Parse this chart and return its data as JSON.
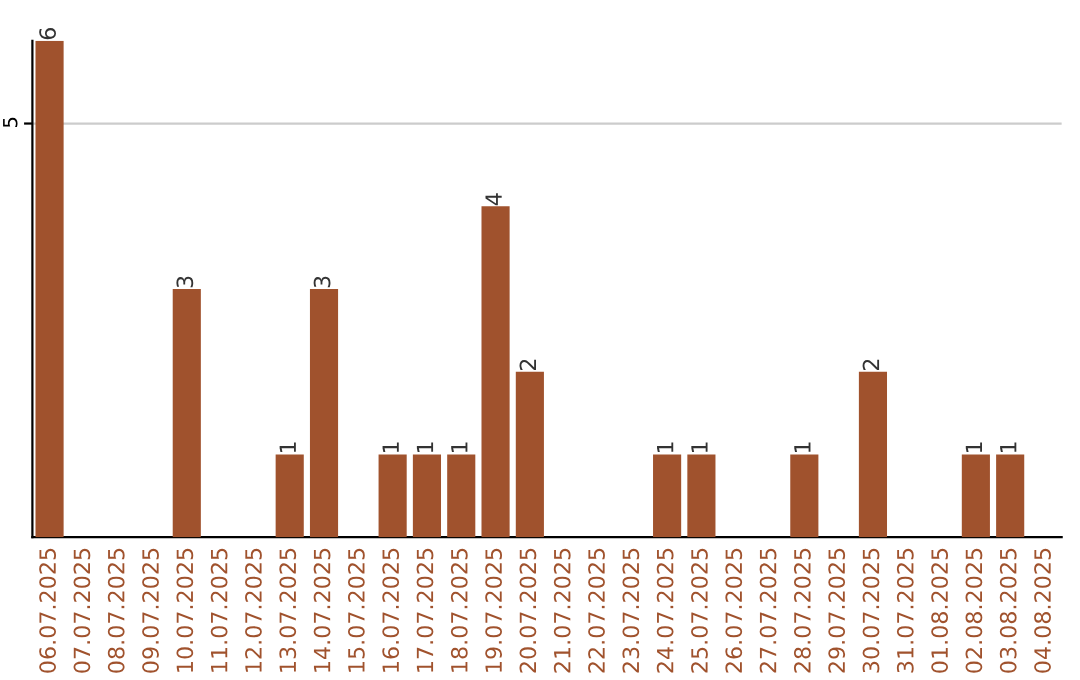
{
  "chart_data": {
    "type": "bar",
    "categories": [
      "06.07.2025",
      "07.07.2025",
      "08.07.2025",
      "09.07.2025",
      "10.07.2025",
      "11.07.2025",
      "12.07.2025",
      "13.07.2025",
      "14.07.2025",
      "15.07.2025",
      "16.07.2025",
      "17.07.2025",
      "18.07.2025",
      "19.07.2025",
      "20.07.2025",
      "21.07.2025",
      "22.07.2025",
      "23.07.2025",
      "24.07.2025",
      "25.07.2025",
      "26.07.2025",
      "27.07.2025",
      "28.07.2025",
      "29.07.2025",
      "30.07.2025",
      "31.07.2025",
      "01.08.2025",
      "02.08.2025",
      "03.08.2025",
      "04.08.2025"
    ],
    "values": [
      6,
      0,
      0,
      0,
      3,
      0,
      0,
      1,
      3,
      0,
      1,
      1,
      1,
      4,
      2,
      0,
      0,
      0,
      1,
      1,
      0,
      0,
      1,
      0,
      2,
      0,
      0,
      1,
      1,
      0
    ],
    "value_labels": [
      "6",
      null,
      null,
      null,
      "3",
      null,
      null,
      "1",
      "3",
      null,
      "1",
      "1",
      "1",
      "4",
      "2",
      null,
      null,
      null,
      "1",
      "1",
      null,
      null,
      "1",
      null,
      "2",
      null,
      null,
      "1",
      "1",
      null
    ],
    "color": "#a0522d",
    "ylim": [
      0,
      6
    ],
    "yticks": [
      5
    ],
    "grid": "y"
  }
}
